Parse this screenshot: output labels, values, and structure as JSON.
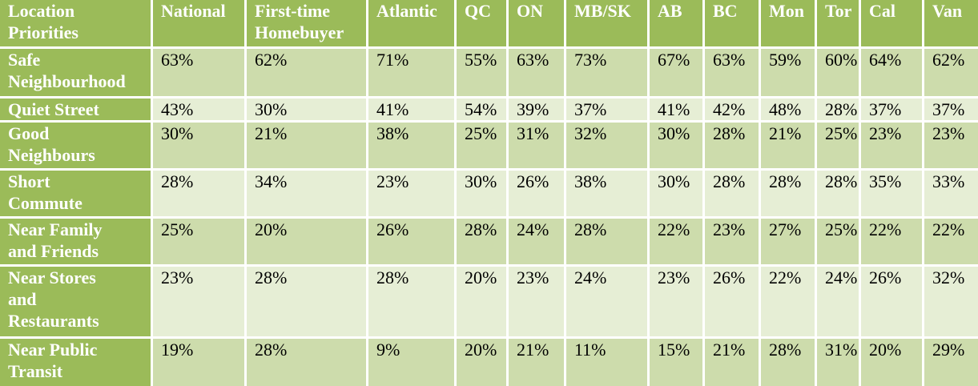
{
  "table": {
    "header": [
      "Location\nPriorities",
      "National",
      "First-time\nHomebuyer",
      "Atlantic",
      "QC",
      "ON",
      "MB/SK",
      "AB",
      "BC",
      "Mon",
      "Tor",
      "Cal",
      "Van"
    ],
    "rows": [
      [
        "Safe\nNeighbourhood",
        "63%",
        "62%",
        "71%",
        "55%",
        "63%",
        "73%",
        "67%",
        "63%",
        "59%",
        "60%",
        "64%",
        "62%"
      ],
      [
        "Quiet Street",
        "43%",
        "30%",
        "41%",
        "54%",
        "39%",
        "37%",
        "41%",
        "42%",
        "48%",
        "28%",
        "37%",
        "37%"
      ],
      [
        "Good\nNeighbours",
        "30%",
        "21%",
        "38%",
        "25%",
        "31%",
        "32%",
        "30%",
        "28%",
        "21%",
        "25%",
        "23%",
        "23%"
      ],
      [
        "Short\nCommute",
        "28%",
        "34%",
        "23%",
        "30%",
        "26%",
        "38%",
        "30%",
        "28%",
        "28%",
        "28%",
        "35%",
        "33%"
      ],
      [
        "Near Family\nand Friends",
        "25%",
        "20%",
        "26%",
        "28%",
        "24%",
        "28%",
        "22%",
        "23%",
        "27%",
        "25%",
        "22%",
        "22%"
      ],
      [
        "Near Stores\nand\nRestaurants",
        "23%",
        "28%",
        "28%",
        "20%",
        "23%",
        "24%",
        "23%",
        "26%",
        "22%",
        "24%",
        "26%",
        "32%"
      ],
      [
        "Near Public\nTransit",
        "19%",
        "28%",
        "9%",
        "20%",
        "21%",
        "11%",
        "15%",
        "21%",
        "28%",
        "31%",
        "20%",
        "29%"
      ]
    ]
  }
}
